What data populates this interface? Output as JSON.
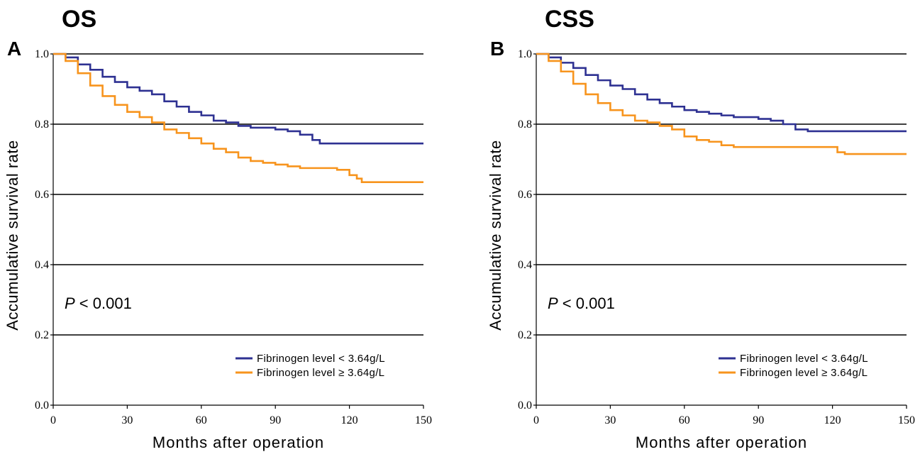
{
  "chart_data": [
    {
      "type": "line",
      "panel_letter": "A",
      "title": "OS",
      "xlabel": "Months after operation",
      "ylabel": "Accumulative survival rate",
      "xlim": [
        0,
        150
      ],
      "ylim": [
        0,
        1
      ],
      "xticks": [
        "0",
        "30",
        "60",
        "90",
        "120",
        "150"
      ],
      "yticks": [
        "0.0",
        "0.2",
        "0.4",
        "0.6",
        "0.8",
        "1.0"
      ],
      "grid": "horizontal",
      "annotation": {
        "italic": "P",
        "rest": " < 0.001"
      },
      "legend_position": "bottom-right",
      "series": [
        {
          "name": "Fibrinogen level < 3.64g/L",
          "color": "#2e3192",
          "x": [
            0,
            5,
            10,
            15,
            20,
            25,
            30,
            35,
            40,
            45,
            50,
            55,
            60,
            65,
            70,
            75,
            80,
            85,
            90,
            95,
            100,
            103,
            105,
            108,
            115,
            125,
            150
          ],
          "y": [
            1.0,
            0.99,
            0.97,
            0.955,
            0.935,
            0.92,
            0.905,
            0.895,
            0.885,
            0.865,
            0.85,
            0.835,
            0.825,
            0.81,
            0.805,
            0.795,
            0.79,
            0.79,
            0.785,
            0.78,
            0.77,
            0.77,
            0.755,
            0.745,
            0.745,
            0.745,
            0.745
          ]
        },
        {
          "name": "Fibrinogen level ≥ 3.64g/L",
          "color": "#f7941d",
          "x": [
            0,
            5,
            10,
            15,
            20,
            25,
            30,
            35,
            40,
            45,
            50,
            55,
            60,
            65,
            70,
            75,
            80,
            85,
            90,
            95,
            100,
            105,
            110,
            115,
            120,
            123,
            125,
            135,
            150
          ],
          "y": [
            1.0,
            0.98,
            0.945,
            0.91,
            0.88,
            0.855,
            0.835,
            0.82,
            0.805,
            0.785,
            0.775,
            0.76,
            0.745,
            0.73,
            0.72,
            0.705,
            0.695,
            0.69,
            0.685,
            0.68,
            0.675,
            0.675,
            0.675,
            0.67,
            0.655,
            0.645,
            0.635,
            0.635,
            0.635
          ]
        }
      ]
    },
    {
      "type": "line",
      "panel_letter": "B",
      "title": "CSS",
      "xlabel": "Months after operation",
      "ylabel": "Accumulative survival rate",
      "xlim": [
        0,
        150
      ],
      "ylim": [
        0,
        1
      ],
      "xticks": [
        "0",
        "30",
        "60",
        "90",
        "120",
        "150"
      ],
      "yticks": [
        "0.0",
        "0.2",
        "0.4",
        "0.6",
        "0.8",
        "1.0"
      ],
      "grid": "horizontal",
      "annotation": {
        "italic": "P",
        "rest": " < 0.001"
      },
      "legend_position": "bottom-right",
      "series": [
        {
          "name": "Fibrinogen level < 3.64g/L",
          "color": "#2e3192",
          "x": [
            0,
            5,
            10,
            15,
            20,
            25,
            30,
            35,
            40,
            45,
            50,
            55,
            60,
            65,
            70,
            75,
            80,
            85,
            90,
            95,
            100,
            105,
            110,
            120,
            150
          ],
          "y": [
            1.0,
            0.99,
            0.975,
            0.96,
            0.94,
            0.925,
            0.91,
            0.9,
            0.885,
            0.87,
            0.86,
            0.85,
            0.84,
            0.835,
            0.83,
            0.825,
            0.82,
            0.82,
            0.815,
            0.81,
            0.8,
            0.785,
            0.78,
            0.78,
            0.78
          ]
        },
        {
          "name": "Fibrinogen level ≥ 3.64g/L",
          "color": "#f7941d",
          "x": [
            0,
            5,
            10,
            15,
            20,
            25,
            30,
            35,
            40,
            45,
            50,
            55,
            60,
            65,
            70,
            75,
            80,
            90,
            100,
            110,
            120,
            122,
            125,
            150
          ],
          "y": [
            1.0,
            0.98,
            0.95,
            0.915,
            0.885,
            0.86,
            0.84,
            0.825,
            0.81,
            0.805,
            0.795,
            0.785,
            0.765,
            0.755,
            0.75,
            0.74,
            0.735,
            0.735,
            0.735,
            0.735,
            0.735,
            0.72,
            0.715,
            0.715
          ]
        }
      ]
    }
  ]
}
